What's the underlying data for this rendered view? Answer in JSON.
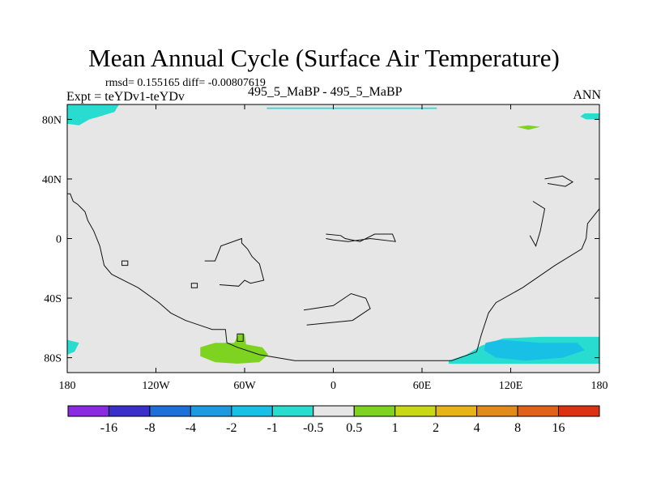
{
  "header": {
    "title": "Mean Annual Cycle (Surface Air Temperature)",
    "stats": "rmsd= 0.155165 diff= -0.00807619",
    "experiment": "Expt = teYDv1-teYDv",
    "case": "495_5_MaBP - 495_5_MaBP",
    "season": "ANN"
  },
  "chart_data": {
    "type": "contour-map",
    "title": "Mean Annual Cycle (Surface Air Temperature)",
    "xlabel": "",
    "ylabel": "",
    "xlim": [
      -180,
      180
    ],
    "ylim": [
      -90,
      90
    ],
    "x_ticks": [
      {
        "value": -180,
        "label": "180"
      },
      {
        "value": -120,
        "label": "120W"
      },
      {
        "value": -60,
        "label": "60W"
      },
      {
        "value": 0,
        "label": "0"
      },
      {
        "value": 60,
        "label": "60E"
      },
      {
        "value": 120,
        "label": "120E"
      },
      {
        "value": 180,
        "label": "180"
      }
    ],
    "y_ticks": [
      {
        "value": 80,
        "label": "80N"
      },
      {
        "value": 40,
        "label": "40N"
      },
      {
        "value": 0,
        "label": "0"
      },
      {
        "value": -40,
        "label": "40S"
      },
      {
        "value": -80,
        "label": "80S"
      }
    ],
    "background_level_color": "#e6e6e6",
    "colorbar": {
      "colors": [
        "#8a2be2",
        "#3a2fc8",
        "#1e6fd8",
        "#1e9be0",
        "#19c0e6",
        "#28dcd0",
        "#e6e6e6",
        "#7ed321",
        "#c8d816",
        "#e6b417",
        "#e08b1a",
        "#e0621a",
        "#dc3214"
      ],
      "labels": [
        "-16",
        "-8",
        "-4",
        "-2",
        "-1",
        "-0.5",
        "0.5",
        "1",
        "2",
        "4",
        "8",
        "16"
      ]
    },
    "regions": [
      {
        "name": "arctic-west-anomaly",
        "level": "-1",
        "color": "#28dcd0",
        "points": [
          [
            -180,
            90
          ],
          [
            -145,
            90
          ],
          [
            -148,
            85
          ],
          [
            -158,
            82
          ],
          [
            -165,
            80
          ],
          [
            -172,
            76
          ],
          [
            -180,
            77
          ]
        ]
      },
      {
        "name": "arctic-strip-anomaly",
        "level": "-1",
        "color": "#28dcd0",
        "points": [
          [
            -45,
            88
          ],
          [
            70,
            88
          ],
          [
            70,
            87
          ],
          [
            -45,
            87
          ]
        ]
      },
      {
        "name": "arctic-east-anomaly",
        "level": "-1",
        "color": "#28dcd0",
        "points": [
          [
            180,
            84
          ],
          [
            170,
            84
          ],
          [
            167,
            82
          ],
          [
            171,
            80
          ],
          [
            180,
            80
          ]
        ]
      },
      {
        "name": "siberia-warm-anomaly",
        "level": "1",
        "color": "#7ed321",
        "points": [
          [
            124,
            75
          ],
          [
            132,
            76
          ],
          [
            140,
            75
          ],
          [
            132,
            73
          ]
        ]
      },
      {
        "name": "antarctic-east-anomaly",
        "level": "-1",
        "color": "#28dcd0",
        "points": [
          [
            78,
            -82
          ],
          [
            90,
            -78
          ],
          [
            100,
            -72
          ],
          [
            115,
            -67
          ],
          [
            140,
            -66
          ],
          [
            162,
            -66
          ],
          [
            180,
            -66
          ],
          [
            180,
            -84
          ],
          [
            78,
            -84
          ]
        ]
      },
      {
        "name": "antarctic-east-cold-core",
        "level": "-2",
        "color": "#19c0e6",
        "points": [
          [
            103,
            -70
          ],
          [
            113,
            -68
          ],
          [
            140,
            -70
          ],
          [
            165,
            -70
          ],
          [
            170,
            -75
          ],
          [
            155,
            -80
          ],
          [
            130,
            -82
          ],
          [
            110,
            -80
          ],
          [
            102,
            -75
          ]
        ]
      },
      {
        "name": "antarctic-west-anomaly",
        "level": "-1",
        "color": "#28dcd0",
        "points": [
          [
            -180,
            -68
          ],
          [
            -172,
            -70
          ],
          [
            -175,
            -76
          ],
          [
            -180,
            -78
          ]
        ]
      },
      {
        "name": "antarctic-peninsula-warm",
        "level": "1",
        "color": "#7ed321",
        "points": [
          [
            -90,
            -73
          ],
          [
            -80,
            -70
          ],
          [
            -67,
            -70
          ],
          [
            -64,
            -64
          ],
          [
            -60,
            -64
          ],
          [
            -59,
            -71
          ],
          [
            -48,
            -73
          ],
          [
            -44,
            -78
          ],
          [
            -50,
            -83
          ],
          [
            -65,
            -84
          ],
          [
            -80,
            -83
          ],
          [
            -90,
            -79
          ]
        ]
      }
    ],
    "coastlines": [
      {
        "name": "north-america-coast",
        "points": [
          [
            -180,
            30
          ],
          [
            -178,
            30
          ],
          [
            -176,
            25
          ],
          [
            -173,
            23
          ],
          [
            -168,
            18
          ],
          [
            -166,
            12
          ],
          [
            -162,
            5
          ],
          [
            -158,
            -5
          ],
          [
            -155,
            -18
          ],
          [
            -150,
            -24
          ],
          [
            -140,
            -29
          ],
          [
            -132,
            -33
          ],
          [
            -118,
            -43
          ],
          [
            -110,
            -50
          ],
          [
            -100,
            -55
          ],
          [
            -82,
            -61
          ],
          [
            -73,
            -61
          ],
          [
            -72,
            -70
          ],
          [
            -65,
            -73
          ],
          [
            -50,
            -78
          ],
          [
            -26,
            -82
          ],
          [
            80,
            -82
          ],
          [
            97,
            -76
          ],
          [
            100,
            -65
          ],
          [
            105,
            -50
          ],
          [
            110,
            -43
          ],
          [
            128,
            -33
          ],
          [
            150,
            -18
          ],
          [
            168,
            -7
          ],
          [
            171,
            0
          ],
          [
            172,
            10
          ],
          [
            180,
            20
          ]
        ]
      },
      {
        "name": "south-america-coast",
        "points": [
          [
            -87,
            -15
          ],
          [
            -80,
            -15
          ],
          [
            -76,
            -5
          ],
          [
            -62,
            0
          ],
          [
            -62,
            -3
          ],
          [
            -58,
            -7
          ],
          [
            -55,
            -12
          ],
          [
            -50,
            -17
          ],
          [
            -47,
            -28
          ],
          [
            -56,
            -30
          ],
          [
            -60,
            -28
          ],
          [
            -64,
            -32
          ],
          [
            -77,
            -31
          ]
        ]
      },
      {
        "name": "africa-coast",
        "points": [
          [
            -5,
            3
          ],
          [
            5,
            2
          ],
          [
            8,
            0
          ],
          [
            18,
            -2
          ],
          [
            28,
            3
          ],
          [
            40,
            3
          ],
          [
            42,
            -2
          ],
          [
            25,
            0
          ],
          [
            10,
            -2
          ],
          [
            0,
            -1
          ],
          [
            -5,
            0
          ]
        ]
      },
      {
        "name": "south-island-coast",
        "points": [
          [
            -20,
            -48
          ],
          [
            0,
            -45
          ],
          [
            12,
            -37
          ],
          [
            22,
            -40
          ],
          [
            25,
            -47
          ],
          [
            13,
            -55
          ],
          [
            -18,
            -58
          ]
        ]
      },
      {
        "name": "pacific-island-coast",
        "points": [
          [
            143,
            40
          ],
          [
            155,
            42
          ],
          [
            162,
            38
          ],
          [
            157,
            35
          ],
          [
            145,
            37
          ]
        ]
      },
      {
        "name": "asia-island-coast",
        "points": [
          [
            135,
            25
          ],
          [
            143,
            20
          ],
          [
            140,
            5
          ],
          [
            137,
            -5
          ],
          [
            133,
            2
          ]
        ]
      }
    ],
    "small_outlines": [
      {
        "name": "islet-a",
        "points": [
          [
            -143,
            -15
          ],
          [
            -139,
            -15
          ],
          [
            -139,
            -18
          ],
          [
            -143,
            -18
          ]
        ]
      },
      {
        "name": "islet-b",
        "points": [
          [
            -96,
            -30
          ],
          [
            -92,
            -30
          ],
          [
            -92,
            -33
          ],
          [
            -96,
            -33
          ]
        ]
      },
      {
        "name": "islet-c",
        "points": [
          [
            -65,
            -64
          ],
          [
            -61,
            -64
          ],
          [
            -61,
            -69
          ],
          [
            -65,
            -69
          ]
        ]
      }
    ]
  }
}
